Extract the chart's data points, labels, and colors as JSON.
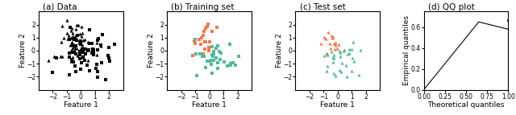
{
  "fig_width": 6.4,
  "fig_height": 1.43,
  "dpi": 100,
  "titles": [
    "(a) Data",
    "(b) Training set",
    "(c) Test set",
    "(d) QQ plot"
  ],
  "xlabel_scatter": "Feature 1",
  "ylabel_scatter": "Feature 2",
  "xlabel_qq": "Theoretical quantiles",
  "ylabel_qq": "Empirical quantiles",
  "xlim_scatter": [
    -3,
    3
  ],
  "ylim_scatter": [
    -3,
    3
  ],
  "xticks_scatter": [
    -2,
    -1,
    0,
    1,
    2
  ],
  "yticks_scatter": [
    -2,
    -1,
    0,
    1,
    2
  ],
  "color_orange": "#F07850",
  "color_teal": "#55B899",
  "color_black": "#000000",
  "marker_square": "s",
  "marker_triangle": "^",
  "ms_scatter": 3.0,
  "title_fontsize": 7.5,
  "tick_fontsize": 5.5,
  "label_fontsize": 6.5,
  "seed_a": 1,
  "seed_bc": 7
}
